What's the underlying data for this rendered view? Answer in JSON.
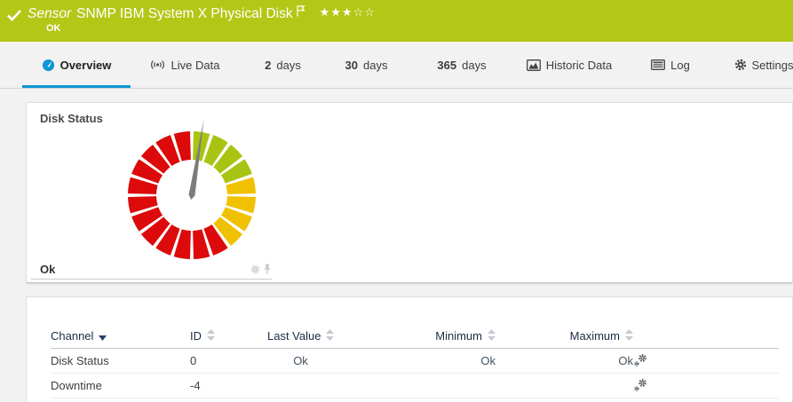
{
  "colors": {
    "header_green": "#b3c717",
    "accent_blue": "#0d96d5",
    "gauge_red": "#dc0a0a",
    "gauge_yellow": "#f0c100",
    "gauge_green": "#a9c312",
    "link_slate": "#44525f"
  },
  "header": {
    "type_label": "Sensor",
    "title": "SNMP IBM System X Physical Disk",
    "status": "OK",
    "stars_filled": "★★★",
    "stars_empty": "☆☆"
  },
  "tabs": [
    {
      "label": "Overview",
      "active": true
    },
    {
      "label": "Live Data"
    },
    {
      "num": "2",
      "label": "days"
    },
    {
      "num": "30",
      "label": "days"
    },
    {
      "num": "365",
      "label": "days"
    },
    {
      "label": "Historic Data"
    },
    {
      "label": "Log"
    },
    {
      "label": "Settings"
    }
  ],
  "gauge_widget": {
    "title": "Disk Status",
    "value": "Ok",
    "needle_angle_deg": 9,
    "needle_color": "#7c7c7c",
    "segments_total": 20,
    "segments": [
      {
        "color": "#a9c312",
        "count": 4
      },
      {
        "color": "#f0c100",
        "count": 4
      },
      {
        "color": "#dc0a0a",
        "count": 12
      }
    ]
  },
  "table": {
    "headers": [
      {
        "label": "Channel"
      },
      {
        "label": "ID"
      },
      {
        "label": "Last Value"
      },
      {
        "label": "Minimum"
      },
      {
        "label": "Maximum"
      }
    ],
    "rows": [
      {
        "channel": "Disk Status",
        "id": "0",
        "last_value": "Ok",
        "minimum": "Ok",
        "maximum": "Ok"
      },
      {
        "channel": "Downtime",
        "id": "-4",
        "last_value": "",
        "minimum": "",
        "maximum": ""
      }
    ]
  }
}
